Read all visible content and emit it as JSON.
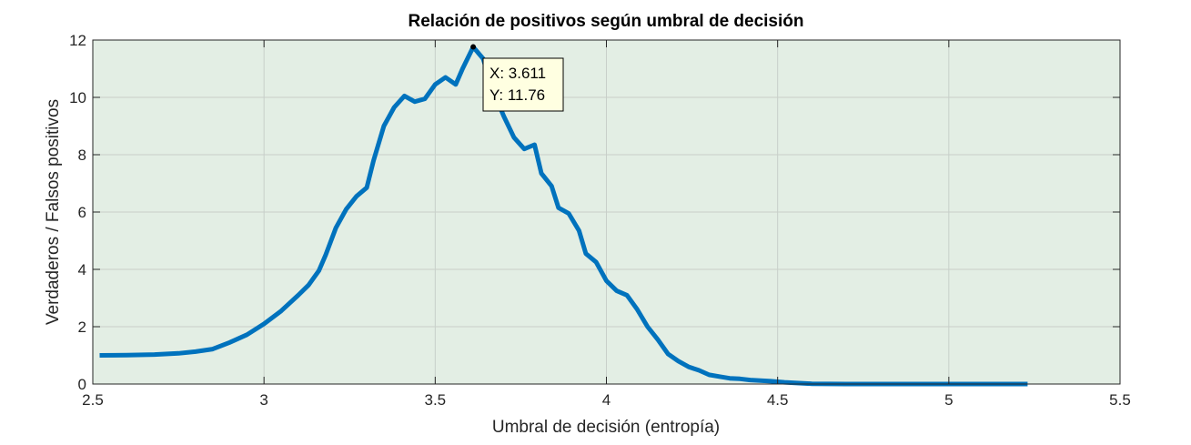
{
  "colors": {
    "plot_background": "#e3eee4",
    "line": "#0072bd",
    "grid": "#c8cfc9",
    "axis": "#262626",
    "tooltip_bg": "#ffffe1"
  },
  "chart_data": {
    "type": "line",
    "title": "Relación de positivos según umbral de decisión",
    "xlabel": "Umbral de decisión (entropía)",
    "ylabel": "Verdaderos / Falsos positivos",
    "xlim": [
      2.5,
      5.5
    ],
    "ylim": [
      0,
      12
    ],
    "x_ticks": [
      "2.5",
      "3",
      "3.5",
      "4",
      "4.5",
      "5",
      "5.5"
    ],
    "y_ticks": [
      "0",
      "2",
      "4",
      "6",
      "8",
      "10",
      "12"
    ],
    "grid": true,
    "series": [
      {
        "x": [
          2.52,
          2.6,
          2.68,
          2.75,
          2.8,
          2.85,
          2.9,
          2.95,
          3.0,
          3.05,
          3.1,
          3.13,
          3.16,
          3.18,
          3.21,
          3.24,
          3.27,
          3.3,
          3.32,
          3.35,
          3.38,
          3.41,
          3.44,
          3.47,
          3.5,
          3.53,
          3.56,
          3.58,
          3.611,
          3.64,
          3.67,
          3.7,
          3.73,
          3.76,
          3.79,
          3.81,
          3.84,
          3.86,
          3.89,
          3.92,
          3.94,
          3.97,
          4.0,
          4.03,
          4.06,
          4.09,
          4.12,
          4.15,
          4.18,
          4.21,
          4.24,
          4.27,
          4.3,
          4.33,
          4.36,
          4.39,
          4.42,
          4.45,
          4.48,
          4.52,
          4.55,
          4.6,
          4.7,
          4.85,
          5.0,
          5.1,
          5.23
        ],
        "y": [
          1.0,
          1.01,
          1.03,
          1.07,
          1.13,
          1.22,
          1.45,
          1.72,
          2.1,
          2.55,
          3.1,
          3.45,
          3.95,
          4.5,
          5.45,
          6.1,
          6.55,
          6.85,
          7.8,
          9.0,
          9.65,
          10.05,
          9.85,
          9.95,
          10.45,
          10.7,
          10.45,
          11.0,
          11.76,
          11.35,
          10.2,
          9.35,
          8.6,
          8.2,
          8.35,
          7.35,
          6.9,
          6.15,
          5.95,
          5.35,
          4.55,
          4.25,
          3.6,
          3.25,
          3.1,
          2.6,
          2.0,
          1.55,
          1.05,
          0.8,
          0.6,
          0.48,
          0.32,
          0.26,
          0.2,
          0.18,
          0.14,
          0.12,
          0.1,
          0.06,
          0.04,
          0.01,
          0.0,
          0.0,
          0.0,
          0.0,
          0.0
        ]
      }
    ],
    "datatip": {
      "x": 3.611,
      "y": 11.76,
      "x_text": "X: 3.611",
      "y_text": "Y: 11.76"
    }
  }
}
